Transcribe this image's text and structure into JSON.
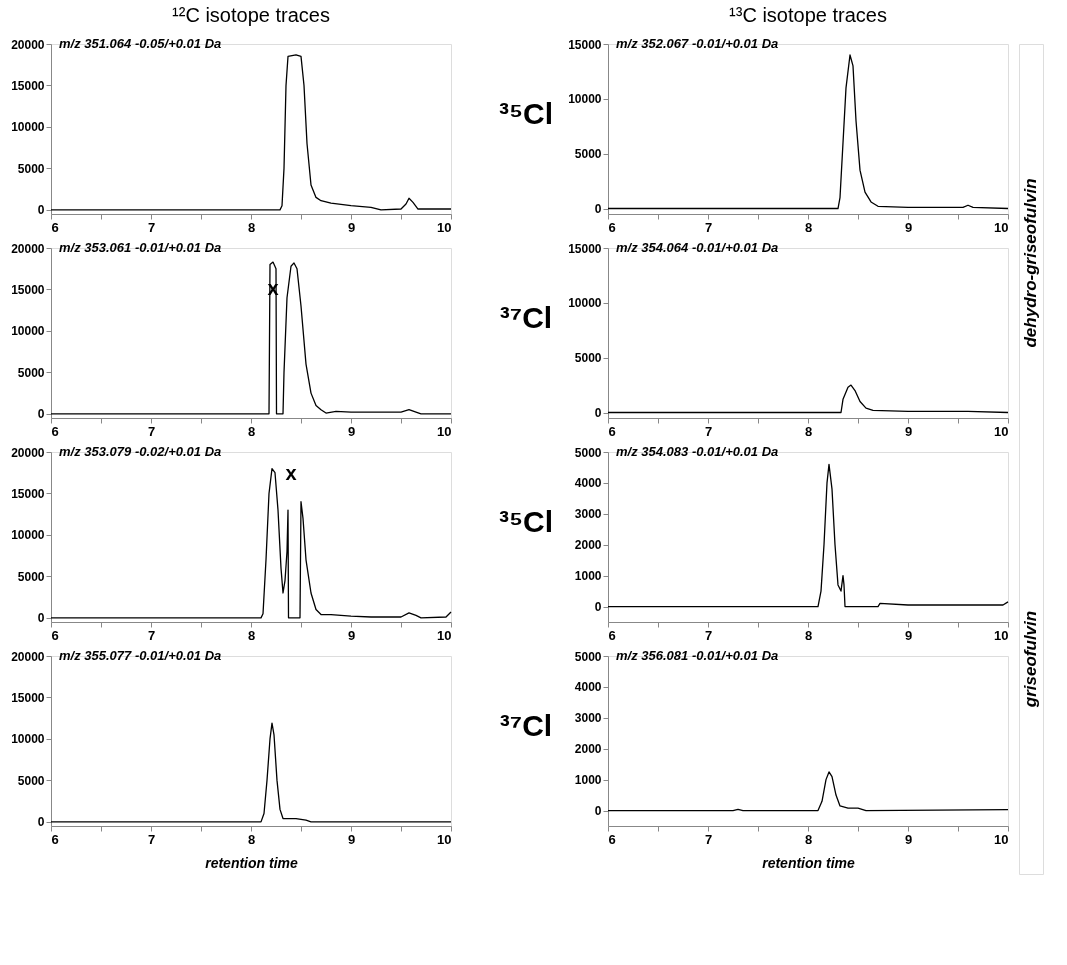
{
  "chart_data": [
    {
      "type": "line",
      "title": "m/z 351.064 -0.05/+0.01 Da",
      "annotations": [
        "¹²C isotope traces",
        "³⁵Cl"
      ],
      "x": [
        6,
        8.29,
        8.31,
        8.33,
        8.35,
        8.37,
        8.45,
        8.5,
        8.53,
        8.56,
        8.6,
        8.65,
        8.7,
        8.8,
        9.0,
        9.2,
        9.3,
        9.5,
        9.55,
        9.58,
        9.62,
        9.67,
        10
      ],
      "series": [
        {
          "color": "#000000",
          "values": [
            0,
            0,
            500,
            5000,
            15000,
            18500,
            18700,
            18500,
            15000,
            8000,
            3000,
            1500,
            1100,
            800,
            500,
            300,
            0,
            100,
            700,
            1400,
            900,
            100,
            100
          ]
        }
      ],
      "xlim": [
        6,
        10
      ],
      "xticks": [
        6,
        {
          "value": 6.5,
          "label": null
        },
        7,
        {
          "value": 7.5,
          "label": null
        },
        8,
        {
          "value": 8.5,
          "label": null
        },
        9,
        {
          "value": 9.5,
          "label": null
        },
        10
      ],
      "ylim": [
        -500,
        20000
      ],
      "yticks": [
        0,
        5000,
        10000,
        15000,
        20000
      ]
    },
    {
      "type": "line",
      "title": "m/z 352.067 -0.01/+0.01 Da",
      "annotations": [
        "¹³C isotope traces",
        "dehydro-griseofulvin"
      ],
      "x": [
        6,
        8.3,
        8.32,
        8.35,
        8.38,
        8.42,
        8.45,
        8.48,
        8.52,
        8.57,
        8.63,
        8.7,
        9.0,
        9.55,
        9.6,
        9.65,
        10
      ],
      "series": [
        {
          "color": "#000000",
          "values": [
            0,
            0,
            1000,
            6000,
            11000,
            14000,
            13000,
            8000,
            3500,
            1500,
            600,
            200,
            100,
            100,
            300,
            100,
            0
          ]
        }
      ],
      "xlim": [
        6,
        10
      ],
      "xticks": [
        6,
        {
          "value": 6.5,
          "label": null
        },
        7,
        {
          "value": 7.5,
          "label": null
        },
        8,
        {
          "value": 8.5,
          "label": null
        },
        9,
        {
          "value": 9.5,
          "label": null
        },
        10
      ],
      "ylim": [
        -500,
        15000
      ],
      "yticks": [
        0,
        5000,
        10000,
        15000
      ]
    },
    {
      "type": "line",
      "title": "m/z 353.061 -0.01/+0.01 Da",
      "annotations": [
        "³⁷Cl",
        {
          "text": "x",
          "x": 8.22,
          "y": 15000
        }
      ],
      "x": [
        6,
        8.18,
        8.19,
        8.22,
        8.25,
        8.255,
        8.32,
        8.33,
        8.36,
        8.4,
        8.43,
        8.46,
        8.5,
        8.55,
        8.6,
        8.65,
        8.7,
        8.75,
        8.85,
        9.0,
        9.5,
        9.58,
        9.65,
        9.7,
        10
      ],
      "series": [
        {
          "color": "#000000",
          "values": [
            0,
            0,
            18000,
            18300,
            17500,
            0,
            0,
            5000,
            14000,
            17800,
            18200,
            17500,
            13000,
            6000,
            2500,
            1000,
            500,
            100,
            300,
            200,
            200,
            500,
            200,
            0,
            0
          ]
        }
      ],
      "xlim": [
        6,
        10
      ],
      "xticks": [
        6,
        {
          "value": 6.5,
          "label": null
        },
        7,
        {
          "value": 7.5,
          "label": null
        },
        8,
        {
          "value": 8.5,
          "label": null
        },
        9,
        {
          "value": 9.5,
          "label": null
        },
        10
      ],
      "ylim": [
        -500,
        20000
      ],
      "yticks": [
        0,
        5000,
        10000,
        15000,
        20000
      ]
    },
    {
      "type": "line",
      "title": "m/z 354.064 -0.01/+0.01 Da",
      "x": [
        6,
        8.33,
        8.35,
        8.4,
        8.43,
        8.47,
        8.52,
        8.58,
        8.65,
        9.0,
        9.6,
        10
      ],
      "series": [
        {
          "color": "#000000",
          "values": [
            0,
            0,
            1200,
            2300,
            2500,
            2000,
            1000,
            400,
            200,
            100,
            100,
            0
          ]
        }
      ],
      "xlim": [
        6,
        10
      ],
      "xticks": [
        6,
        {
          "value": 6.5,
          "label": null
        },
        7,
        {
          "value": 7.5,
          "label": null
        },
        8,
        {
          "value": 8.5,
          "label": null
        },
        9,
        {
          "value": 9.5,
          "label": null
        },
        10
      ],
      "ylim": [
        -500,
        15000
      ],
      "yticks": [
        0,
        5000,
        10000,
        15000
      ]
    },
    {
      "type": "line",
      "title": "m/z 353.079 -0.02/+0.01 Da",
      "annotations": [
        "³⁵Cl",
        "x"
      ],
      "x": [
        6,
        8.1,
        8.12,
        8.15,
        8.18,
        8.21,
        8.24,
        8.27,
        8.3,
        8.32,
        8.34,
        8.36,
        8.37,
        8.375,
        8.49,
        8.5,
        8.52,
        8.55,
        8.6,
        8.65,
        8.7,
        8.8,
        9.0,
        9.2,
        9.5,
        9.58,
        9.65,
        9.7,
        9.95,
        10
      ],
      "series": [
        {
          "color": "#000000",
          "values": [
            0,
            0,
            500,
            7000,
            15000,
            18000,
            17500,
            13000,
            6000,
            3000,
            4500,
            8000,
            13000,
            0,
            0,
            14000,
            12000,
            7000,
            3000,
            1000,
            400,
            400,
            200,
            100,
            100,
            600,
            300,
            0,
            100,
            700
          ]
        }
      ],
      "xlim": [
        6,
        10
      ],
      "xticks": [
        6,
        {
          "value": 6.5,
          "label": null
        },
        7,
        {
          "value": 7.5,
          "label": null
        },
        8,
        {
          "value": 8.5,
          "label": null
        },
        9,
        {
          "value": 9.5,
          "label": null
        },
        10
      ],
      "ylim": [
        -500,
        20000
      ],
      "yticks": [
        0,
        5000,
        10000,
        15000,
        20000
      ]
    },
    {
      "type": "line",
      "title": "m/z 354.083 -0.01/+0.01 Da",
      "annotations": [
        "griseofulvin"
      ],
      "x": [
        6,
        8.1,
        8.13,
        8.16,
        8.19,
        8.21,
        8.24,
        8.27,
        8.3,
        8.33,
        8.35,
        8.36,
        8.37,
        8.7,
        8.72,
        9.0,
        9.5,
        9.95,
        10
      ],
      "series": [
        {
          "color": "#000000",
          "values": [
            0,
            0,
            500,
            2000,
            4000,
            4600,
            3800,
            2000,
            700,
            500,
            1000,
            700,
            0,
            0,
            100,
            50,
            50,
            50,
            150
          ]
        }
      ],
      "xlim": [
        6,
        10
      ],
      "xticks": [
        6,
        {
          "value": 6.5,
          "label": null
        },
        7,
        {
          "value": 7.5,
          "label": null
        },
        8,
        {
          "value": 8.5,
          "label": null
        },
        9,
        {
          "value": 9.5,
          "label": null
        },
        10
      ],
      "ylim": [
        -500,
        5000
      ],
      "yticks": [
        0,
        1000,
        2000,
        3000,
        4000,
        5000
      ]
    },
    {
      "type": "line",
      "title": "m/z 355.077 -0.01/+0.01 Da",
      "xlabel": "retention time",
      "annotations": [
        "³⁷Cl"
      ],
      "x": [
        6,
        8.1,
        8.13,
        8.16,
        8.19,
        8.21,
        8.23,
        8.26,
        8.29,
        8.32,
        8.45,
        8.55,
        8.6,
        10
      ],
      "series": [
        {
          "color": "#000000",
          "values": [
            0,
            0,
            1000,
            5000,
            10000,
            11900,
            10500,
            5000,
            1500,
            400,
            400,
            200,
            0,
            0
          ]
        }
      ],
      "xlim": [
        6,
        10
      ],
      "xticks": [
        6,
        {
          "value": 6.5,
          "label": null
        },
        7,
        {
          "value": 7.5,
          "label": null
        },
        8,
        {
          "value": 8.5,
          "label": null
        },
        9,
        {
          "value": 9.5,
          "label": null
        },
        10
      ],
      "ylim": [
        -500,
        20000
      ],
      "yticks": [
        0,
        5000,
        10000,
        15000,
        20000
      ]
    },
    {
      "type": "line",
      "title": "m/z 356.081 -0.01/+0.01 Da",
      "xlabel": "retention time",
      "x": [
        6,
        7.25,
        7.3,
        7.35,
        8.1,
        8.14,
        8.18,
        8.21,
        8.24,
        8.28,
        8.32,
        8.4,
        8.5,
        8.58,
        10
      ],
      "series": [
        {
          "color": "#000000",
          "values": [
            0,
            0,
            40,
            0,
            0,
            300,
            1000,
            1250,
            1100,
            500,
            150,
            80,
            80,
            0,
            30
          ]
        }
      ],
      "xlim": [
        6,
        10
      ],
      "xticks": [
        6,
        {
          "value": 6.5,
          "label": null
        },
        7,
        {
          "value": 7.5,
          "label": null
        },
        8,
        {
          "value": 8.5,
          "label": null
        },
        9,
        {
          "value": 9.5,
          "label": null
        },
        10
      ],
      "ylim": [
        -500,
        5000
      ],
      "yticks": [
        0,
        1000,
        2000,
        3000,
        4000,
        5000
      ]
    }
  ]
}
